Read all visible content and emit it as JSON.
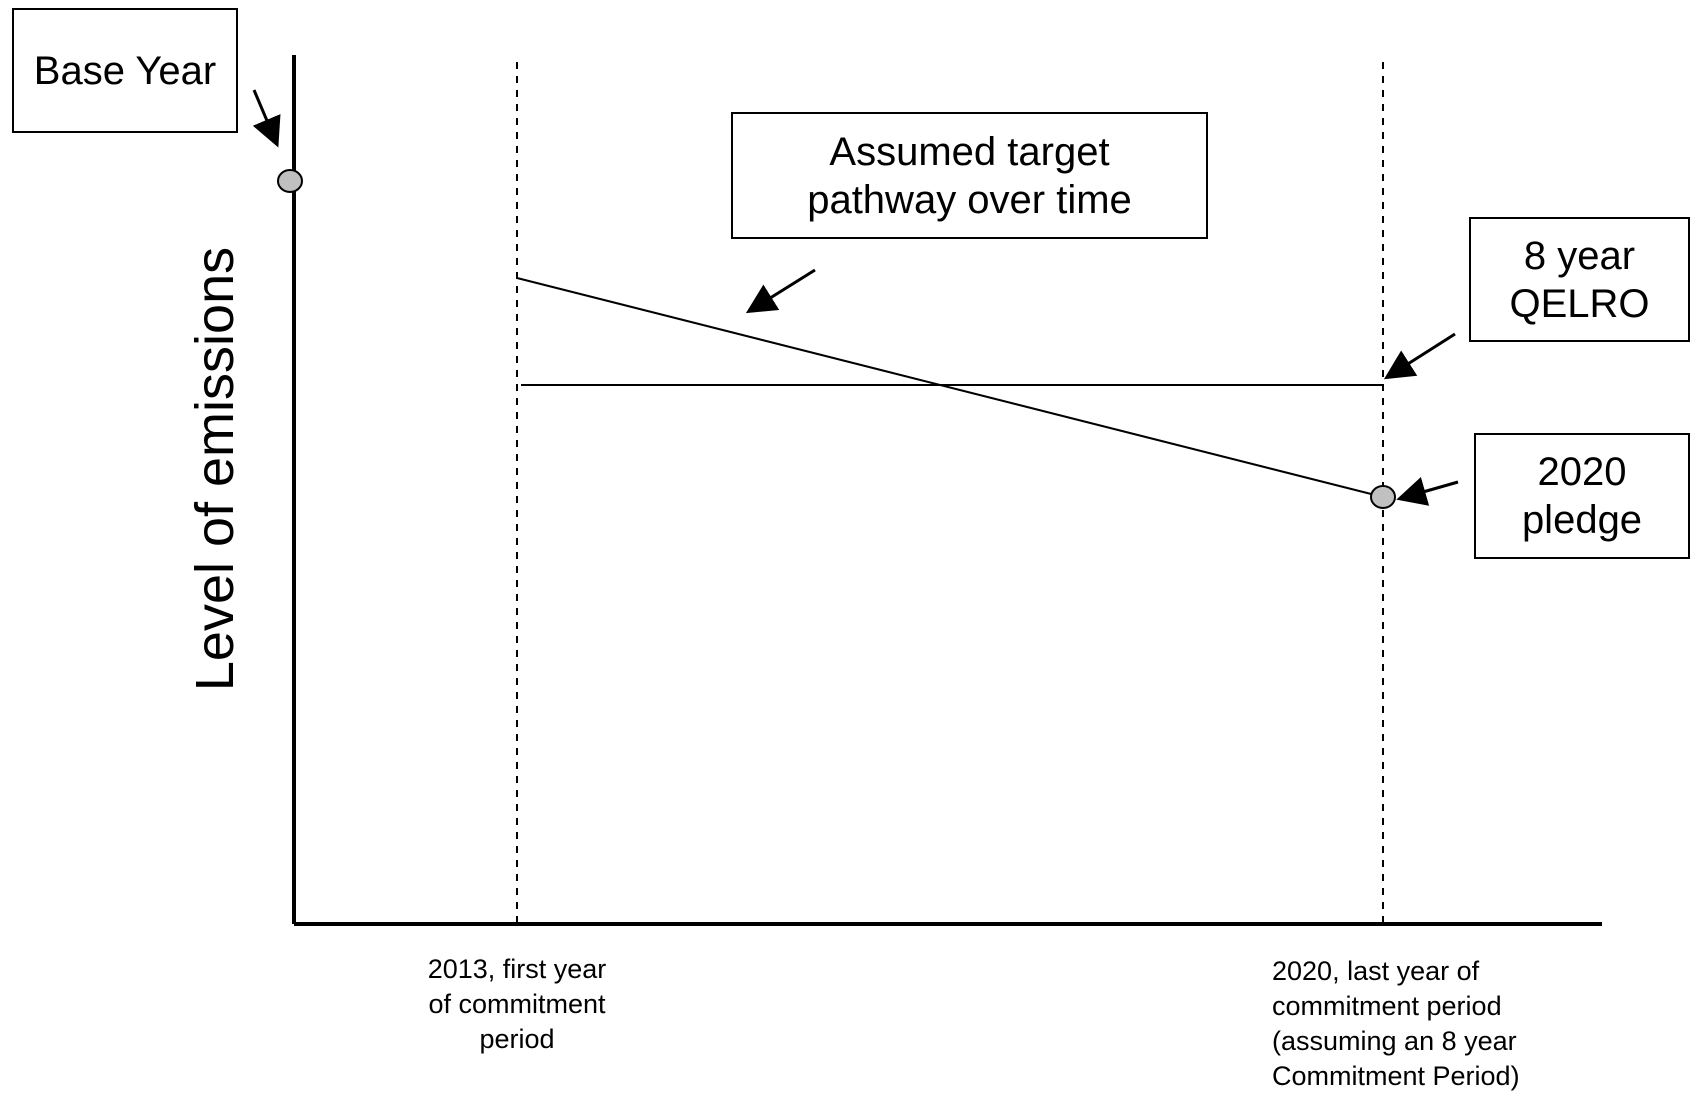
{
  "diagram": {
    "y_axis_label": "Level of emissions",
    "annotations": {
      "base_year": "Base Year",
      "target_pathway": "Assumed target\npathway over time",
      "qelro": "8 year\nQELRO",
      "pledge": "2020\npledge"
    },
    "x_labels": {
      "start": "2013, first year\nof commitment\nperiod",
      "end": "2020, last year of\ncommitment period\n(assuming an 8 year\nCommitment Period)"
    },
    "colors": {
      "line": "#000000",
      "marker_fill": "#c0c0c0",
      "background": "#ffffff"
    }
  }
}
